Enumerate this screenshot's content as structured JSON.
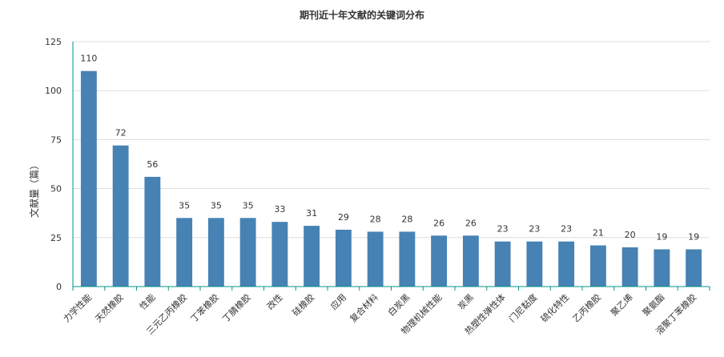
{
  "chart_data": {
    "type": "bar",
    "title": "期刊近十年文献的关键词分布",
    "xlabel": "",
    "ylabel": "文献量（篇）",
    "ylim": [
      0,
      125
    ],
    "yticks": [
      0,
      25,
      50,
      75,
      100,
      125
    ],
    "grid": true,
    "categories": [
      "力学性能",
      "天然橡胶",
      "性能",
      "三元乙丙橡胶",
      "丁苯橡胶",
      "丁腈橡胶",
      "改性",
      "硅橡胶",
      "应用",
      "复合材料",
      "白炭黑",
      "物理机械性能",
      "炭黑",
      "热塑性弹性体",
      "门尼黏度",
      "硫化特性",
      "乙丙橡胶",
      "聚乙烯",
      "聚氨酯",
      "溶聚丁苯橡胶"
    ],
    "values": [
      110,
      72,
      56,
      35,
      35,
      35,
      33,
      31,
      29,
      28,
      28,
      26,
      26,
      23,
      23,
      23,
      21,
      20,
      19,
      19
    ],
    "bar_color": "#4682b4",
    "axis_color": "#009688"
  }
}
